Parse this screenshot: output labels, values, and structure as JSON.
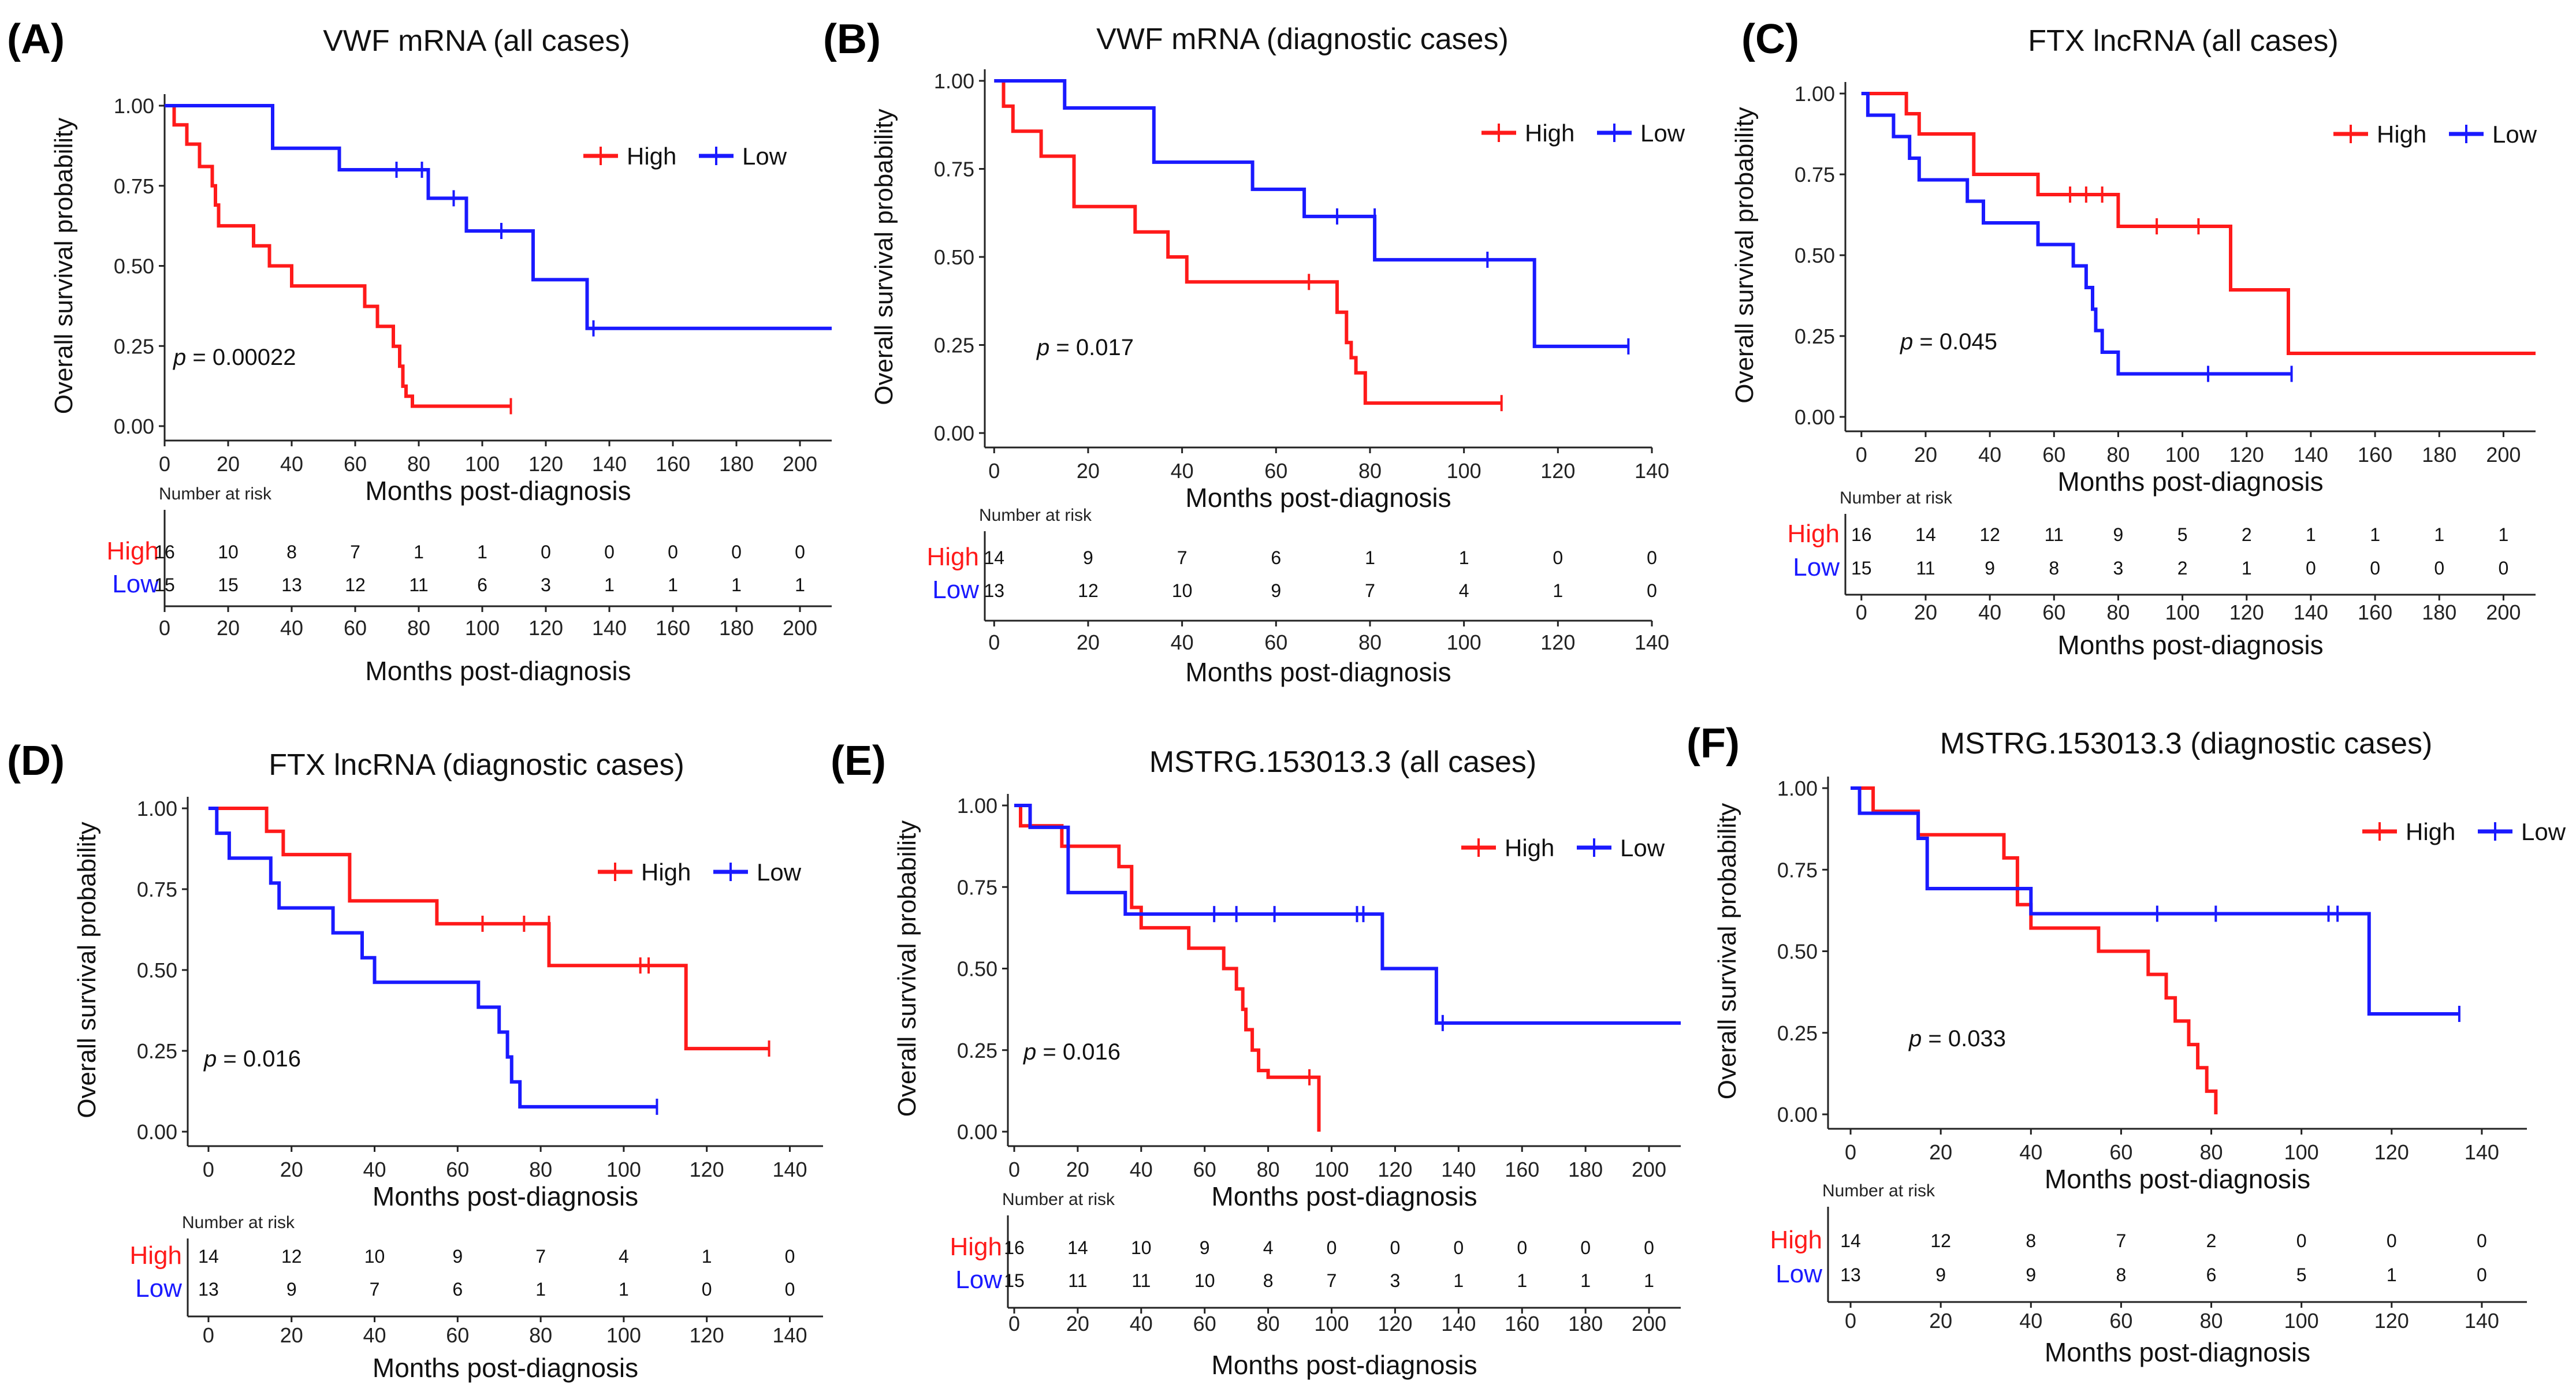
{
  "colors": {
    "high": "#ff1a1a",
    "low": "#1a1aff",
    "axis": "#222222"
  },
  "common": {
    "ylabel": "Overall survival probability",
    "xlabel": "Months post-diagnosis",
    "risk_title": "Number at risk",
    "y_ticks": [
      "0.00",
      "0.25",
      "0.50",
      "0.75",
      "1.00"
    ],
    "legend_high": "High",
    "legend_low": "Low",
    "risk_high_label": "High",
    "risk_low_label": "Low"
  },
  "chart_data": [
    {
      "type": "line",
      "letter": "(A)",
      "title": "VWF mRNA (all cases)",
      "pvalue": "0.00022",
      "xlim": [
        0,
        210
      ],
      "ylim": [
        0,
        1
      ],
      "x_ticks": [
        "0",
        "20",
        "40",
        "60",
        "80",
        "100",
        "120",
        "140",
        "160",
        "180",
        "200"
      ],
      "risk_x": [
        0,
        20,
        40,
        60,
        80,
        100,
        120,
        140,
        160,
        180,
        200
      ],
      "risk_high": [
        "16",
        "10",
        "8",
        "7",
        "1",
        "1",
        "0",
        "0",
        "0",
        "0",
        "0"
      ],
      "risk_low": [
        "15",
        "15",
        "13",
        "12",
        "11",
        "6",
        "3",
        "1",
        "1",
        "1",
        "1"
      ],
      "series": [
        {
          "name": "High",
          "x": [
            0,
            3,
            3,
            7,
            7,
            11,
            11,
            15,
            15,
            16,
            16,
            17,
            17,
            28,
            28,
            33,
            33,
            40,
            40,
            63,
            63,
            67,
            67,
            72,
            72,
            74,
            74,
            75,
            75,
            76,
            76,
            78,
            78,
            109
          ],
          "y": [
            1,
            1,
            0.94,
            0.94,
            0.88,
            0.88,
            0.81,
            0.81,
            0.75,
            0.75,
            0.69,
            0.69,
            0.625,
            0.625,
            0.5625,
            0.5625,
            0.5,
            0.5,
            0.4375,
            0.4375,
            0.3737,
            0.3737,
            0.3114,
            0.3114,
            0.2491,
            0.2491,
            0.1868,
            0.1868,
            0.1245,
            0.1245,
            0.0934,
            0.0934,
            0.0622,
            0.0622
          ],
          "censor_x": [
            109
          ],
          "censor_y": [
            0.0622
          ]
        },
        {
          "name": "Low",
          "x": [
            0,
            34,
            34,
            55,
            55,
            83,
            83,
            95,
            95,
            116,
            116,
            133,
            133,
            210
          ],
          "y": [
            1,
            1,
            0.867,
            0.867,
            0.8,
            0.8,
            0.711,
            0.711,
            0.609,
            0.609,
            0.457,
            0.457,
            0.305,
            0.305
          ],
          "censor_x": [
            73,
            81,
            91,
            106,
            135
          ],
          "censor_y": [
            0.8,
            0.8,
            0.711,
            0.609,
            0.305
          ]
        }
      ]
    },
    {
      "type": "line",
      "letter": "(B)",
      "title": "VWF mRNA (diagnostic cases)",
      "pvalue": "0.017",
      "xlim": [
        -2,
        140
      ],
      "ylim": [
        0,
        1
      ],
      "x_ticks": [
        "0",
        "20",
        "40",
        "60",
        "80",
        "100",
        "120",
        "140"
      ],
      "risk_x": [
        0,
        20,
        40,
        60,
        80,
        100,
        120,
        140
      ],
      "risk_high": [
        "14",
        "9",
        "7",
        "6",
        "1",
        "1",
        "0",
        "0"
      ],
      "risk_low": [
        "13",
        "12",
        "10",
        "9",
        "7",
        "4",
        "1",
        "0"
      ],
      "series": [
        {
          "name": "High",
          "x": [
            0,
            2,
            2,
            4,
            4,
            10,
            10,
            17,
            17,
            30,
            30,
            37,
            37,
            41,
            41,
            73,
            73,
            75,
            75,
            76,
            76,
            77,
            77,
            79,
            79,
            108
          ],
          "y": [
            1,
            1,
            0.928,
            0.928,
            0.857,
            0.857,
            0.786,
            0.786,
            0.643,
            0.643,
            0.571,
            0.571,
            0.5,
            0.5,
            0.429,
            0.429,
            0.343,
            0.343,
            0.257,
            0.257,
            0.214,
            0.214,
            0.171,
            0.171,
            0.085,
            0.085
          ],
          "censor_x": [
            67,
            108
          ],
          "censor_y": [
            0.429,
            0.085
          ]
        },
        {
          "name": "Low",
          "x": [
            0,
            15,
            15,
            34,
            34,
            55,
            55,
            66,
            66,
            81,
            81,
            115,
            115,
            135
          ],
          "y": [
            1,
            1,
            0.923,
            0.923,
            0.769,
            0.769,
            0.692,
            0.692,
            0.615,
            0.615,
            0.492,
            0.492,
            0.246,
            0.246
          ],
          "censor_x": [
            73,
            81,
            105,
            135
          ],
          "censor_y": [
            0.615,
            0.615,
            0.492,
            0.246
          ]
        }
      ]
    },
    {
      "type": "line",
      "letter": "(C)",
      "title": "FTX lncRNA (all cases)",
      "pvalue": "0.045",
      "xlim": [
        -5,
        210
      ],
      "ylim": [
        0,
        1
      ],
      "x_ticks": [
        "0",
        "20",
        "40",
        "60",
        "80",
        "100",
        "120",
        "140",
        "160",
        "180",
        "200"
      ],
      "risk_x": [
        0,
        20,
        40,
        60,
        80,
        100,
        120,
        140,
        160,
        180,
        200
      ],
      "risk_high": [
        "16",
        "14",
        "12",
        "11",
        "9",
        "5",
        "2",
        "1",
        "1",
        "1",
        "1"
      ],
      "risk_low": [
        "15",
        "11",
        "9",
        "8",
        "3",
        "2",
        "1",
        "0",
        "0",
        "0",
        "0"
      ],
      "series": [
        {
          "name": "High",
          "x": [
            0,
            14,
            14,
            18,
            18,
            35,
            35,
            55,
            55,
            80,
            80,
            115,
            115,
            133,
            133,
            210
          ],
          "y": [
            1,
            1,
            0.9375,
            0.9375,
            0.875,
            0.875,
            0.75,
            0.75,
            0.6875,
            0.6875,
            0.5893,
            0.5893,
            0.3929,
            0.3929,
            0.1964,
            0.1964
          ],
          "censor_x": [
            65,
            70,
            75,
            92,
            105
          ],
          "censor_y": [
            0.6875,
            0.6875,
            0.6875,
            0.5893,
            0.5893
          ]
        },
        {
          "name": "Low",
          "x": [
            0,
            2,
            2,
            10,
            10,
            15,
            15,
            18,
            18,
            33,
            33,
            38,
            38,
            55,
            55,
            66,
            66,
            70,
            70,
            72,
            72,
            73,
            73,
            75,
            75,
            80,
            80,
            97,
            97,
            134
          ],
          "y": [
            1,
            1,
            0.933,
            0.933,
            0.867,
            0.867,
            0.8,
            0.8,
            0.733,
            0.733,
            0.667,
            0.667,
            0.6,
            0.6,
            0.533,
            0.533,
            0.467,
            0.467,
            0.4,
            0.4,
            0.333,
            0.333,
            0.267,
            0.267,
            0.2,
            0.2,
            0.133,
            0.133,
            0.133,
            0.133
          ],
          "censor_x": [
            108,
            134
          ],
          "censor_y": [
            0.133,
            0.133
          ]
        }
      ]
    },
    {
      "type": "line",
      "letter": "(D)",
      "title": "FTX lncRNA (diagnostic cases)",
      "pvalue": "0.016",
      "xlim": [
        -5,
        148
      ],
      "ylim": [
        0,
        1
      ],
      "x_ticks": [
        "0",
        "20",
        "40",
        "60",
        "80",
        "100",
        "120",
        "140"
      ],
      "risk_x": [
        0,
        20,
        40,
        60,
        80,
        100,
        120,
        140
      ],
      "risk_high": [
        "14",
        "12",
        "10",
        "9",
        "7",
        "4",
        "1",
        "0"
      ],
      "risk_low": [
        "13",
        "9",
        "7",
        "6",
        "1",
        "1",
        "0",
        "0"
      ],
      "series": [
        {
          "name": "High",
          "x": [
            0,
            14,
            14,
            18,
            18,
            34,
            34,
            55,
            55,
            82,
            82,
            115,
            115,
            135
          ],
          "y": [
            1,
            1,
            0.929,
            0.929,
            0.857,
            0.857,
            0.714,
            0.714,
            0.643,
            0.643,
            0.514,
            0.514,
            0.257,
            0.257
          ],
          "censor_x": [
            66,
            76,
            82,
            104,
            106,
            135
          ],
          "censor_y": [
            0.643,
            0.643,
            0.643,
            0.514,
            0.514,
            0.257
          ]
        },
        {
          "name": "Low",
          "x": [
            0,
            2,
            2,
            5,
            5,
            15,
            15,
            17,
            17,
            30,
            30,
            37,
            37,
            40,
            40,
            65,
            65,
            70,
            70,
            72,
            72,
            73,
            73,
            75,
            75,
            79,
            79,
            108
          ],
          "y": [
            1,
            1,
            0.923,
            0.923,
            0.846,
            0.846,
            0.769,
            0.769,
            0.692,
            0.692,
            0.615,
            0.615,
            0.538,
            0.538,
            0.462,
            0.462,
            0.385,
            0.385,
            0.308,
            0.308,
            0.231,
            0.231,
            0.154,
            0.154,
            0.077,
            0.077,
            0.077,
            0.077
          ],
          "censor_x": [
            108
          ],
          "censor_y": [
            0.077
          ]
        }
      ]
    },
    {
      "type": "line",
      "letter": "(E)",
      "title": "MSTRG.153013.3 (all cases)",
      "pvalue": "0.016",
      "xlim": [
        -2,
        210
      ],
      "ylim": [
        0,
        1
      ],
      "x_ticks": [
        "0",
        "20",
        "40",
        "60",
        "80",
        "100",
        "120",
        "140",
        "160",
        "180",
        "200"
      ],
      "risk_x": [
        0,
        20,
        40,
        60,
        80,
        100,
        120,
        140,
        160,
        180,
        200
      ],
      "risk_high": [
        "16",
        "14",
        "10",
        "9",
        "4",
        "0",
        "0",
        "0",
        "0",
        "0",
        "0"
      ],
      "risk_low": [
        "15",
        "11",
        "11",
        "10",
        "8",
        "7",
        "3",
        "1",
        "1",
        "1",
        "1"
      ],
      "series": [
        {
          "name": "High",
          "x": [
            0,
            2,
            2,
            15,
            15,
            33,
            33,
            37,
            37,
            40,
            40,
            55,
            55,
            66,
            66,
            70,
            70,
            72,
            72,
            73,
            73,
            75,
            75,
            77,
            77,
            80,
            80,
            96,
            96
          ],
          "y": [
            1,
            1,
            0.9375,
            0.9375,
            0.875,
            0.875,
            0.8125,
            0.8125,
            0.6875,
            0.6875,
            0.625,
            0.625,
            0.5625,
            0.5625,
            0.5,
            0.5,
            0.4375,
            0.4375,
            0.375,
            0.375,
            0.3125,
            0.3125,
            0.25,
            0.25,
            0.1875,
            0.1875,
            0.1667,
            0.1667,
            0
          ],
          "censor_x": [
            93
          ],
          "censor_y": [
            0.1667
          ]
        },
        {
          "name": "Low",
          "x": [
            0,
            5,
            5,
            17,
            17,
            35,
            35,
            116,
            116,
            133,
            133,
            210
          ],
          "y": [
            1,
            1,
            0.933,
            0.933,
            0.733,
            0.733,
            0.667,
            0.667,
            0.5,
            0.5,
            0.333,
            0.333
          ],
          "censor_x": [
            63,
            70,
            82,
            108,
            110,
            135
          ],
          "censor_y": [
            0.667,
            0.667,
            0.667,
            0.667,
            0.667,
            0.333
          ]
        }
      ]
    },
    {
      "type": "line",
      "letter": "(F)",
      "title": "MSTRG.153013.3 (diagnostic cases)",
      "pvalue": "0.033",
      "xlim": [
        -5,
        150
      ],
      "ylim": [
        0,
        1
      ],
      "x_ticks": [
        "0",
        "20",
        "40",
        "60",
        "80",
        "100",
        "120",
        "140"
      ],
      "risk_x": [
        0,
        20,
        40,
        60,
        80,
        100,
        120,
        140
      ],
      "risk_high": [
        "14",
        "12",
        "8",
        "7",
        "2",
        "0",
        "0",
        "0"
      ],
      "risk_low": [
        "13",
        "9",
        "9",
        "8",
        "6",
        "5",
        "1",
        "0"
      ],
      "series": [
        {
          "name": "High",
          "x": [
            0,
            5,
            5,
            15,
            15,
            34,
            34,
            37,
            37,
            40,
            40,
            55,
            55,
            66,
            66,
            70,
            70,
            72,
            72,
            75,
            75,
            77,
            77,
            79,
            79,
            80,
            80,
            81,
            81
          ],
          "y": [
            1,
            1,
            0.929,
            0.929,
            0.857,
            0.857,
            0.786,
            0.786,
            0.643,
            0.643,
            0.571,
            0.571,
            0.5,
            0.5,
            0.429,
            0.429,
            0.357,
            0.357,
            0.286,
            0.286,
            0.214,
            0.214,
            0.143,
            0.143,
            0.071,
            0.071,
            0.071,
            0.071,
            0
          ],
          "censor_x": [],
          "censor_y": []
        },
        {
          "name": "Low",
          "x": [
            0,
            2,
            2,
            15,
            15,
            17,
            17,
            40,
            40,
            115,
            115,
            135
          ],
          "y": [
            1,
            1,
            0.923,
            0.923,
            0.846,
            0.846,
            0.692,
            0.692,
            0.615,
            0.615,
            0.308,
            0.308
          ],
          "censor_x": [
            68,
            81,
            106,
            108,
            135
          ],
          "censor_y": [
            0.615,
            0.615,
            0.615,
            0.615,
            0.308
          ]
        }
      ]
    }
  ]
}
